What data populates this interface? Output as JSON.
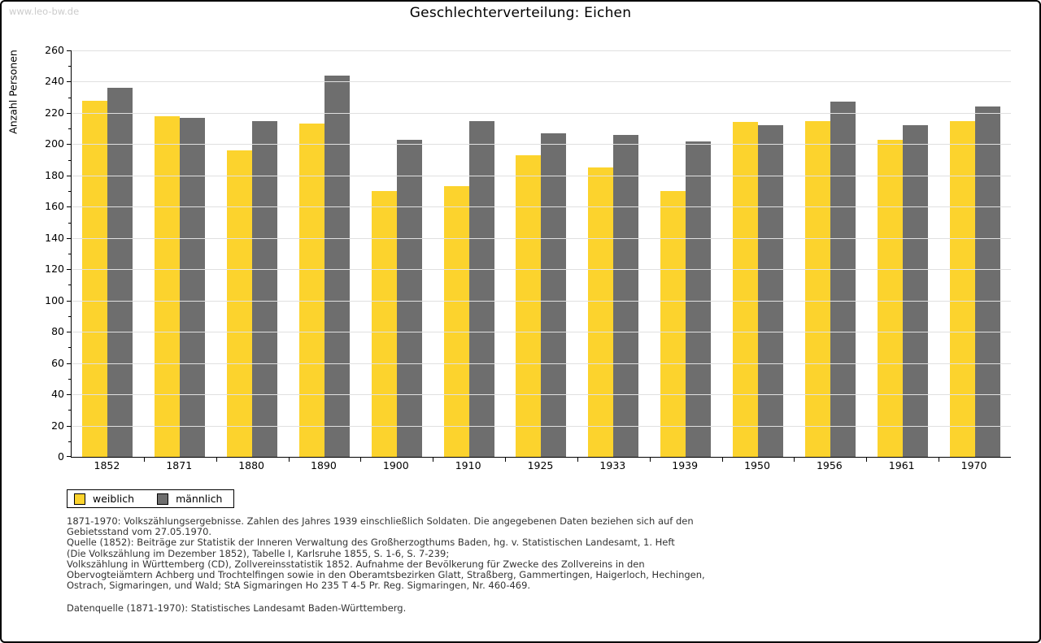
{
  "watermark": "www.leo-bw.de",
  "title": "Geschlechterverteilung: Eichen",
  "chart_data": {
    "type": "bar",
    "title": "Geschlechterverteilung: Eichen",
    "xlabel": "",
    "ylabel": "Anzahl Personen",
    "categories": [
      "1852",
      "1871",
      "1880",
      "1890",
      "1900",
      "1910",
      "1925",
      "1933",
      "1939",
      "1950",
      "1956",
      "1961",
      "1970"
    ],
    "series": [
      {
        "name": "weiblich",
        "color": "#fcd32d",
        "values": [
          228,
          218,
          196,
          213,
          170,
          173,
          193,
          185,
          170,
          214,
          215,
          203,
          215
        ]
      },
      {
        "name": "männlich",
        "color": "#6e6e6e",
        "values": [
          236,
          217,
          215,
          244,
          203,
          215,
          207,
          206,
          202,
          212,
          227,
          212,
          224
        ]
      }
    ],
    "ylim": [
      0,
      260
    ],
    "ytick_major_step": 20,
    "ytick_minor_step": 10,
    "grid": "horizontal-major",
    "gridline_color": "#e0e0e0",
    "legend_position": "bottom-left"
  },
  "legend": {
    "items": [
      {
        "label": "weiblich",
        "color": "#fcd32d"
      },
      {
        "label": "männlich",
        "color": "#6e6e6e"
      }
    ]
  },
  "footer": {
    "notes_lines": [
      "1871-1970: Volkszählungsergebnisse. Zahlen des Jahres 1939 einschließlich Soldaten. Die angegebenen Daten beziehen sich auf den",
      "Gebietsstand vom 27.05.1970.",
      "Quelle (1852): Beiträge zur Statistik der Inneren Verwaltung des Großherzogthums Baden, hg. v. Statistischen Landesamt, 1. Heft",
      "(Die Volkszählung im Dezember 1852), Tabelle I, Karlsruhe 1855, S. 1-6, S. 7-239;",
      "Volkszählung in Württemberg (CD), Zollvereinsstatistik 1852. Aufnahme der Bevölkerung für Zwecke des Zollvereins in den",
      "Obervogteiämtern Achberg und Trochtelfingen sowie in den Oberamtsbezirken Glatt, Straßberg, Gammertingen, Haigerloch, Hechingen,",
      "Ostrach, Sigmaringen, und Wald; StA Sigmaringen Ho 235 T 4-5 Pr. Reg. Sigmaringen, Nr. 460-469."
    ],
    "source_line": "Datenquelle (1871-1970): Statistisches Landesamt Baden-Württemberg."
  }
}
